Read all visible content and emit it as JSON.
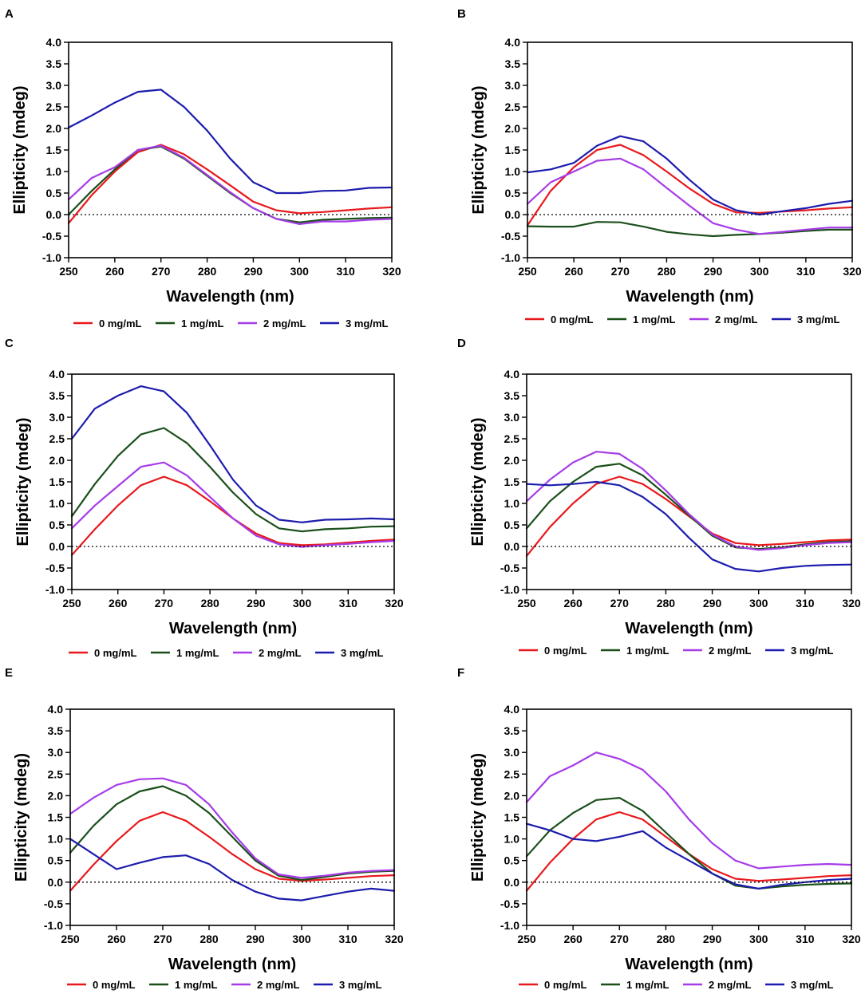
{
  "figure": {
    "series_names": [
      "0 mg/mL",
      "1 mg/mL",
      "2 mg/mL",
      "3 mg/mL"
    ],
    "series_colors": [
      "#e8191c",
      "#1a4f1a",
      "#a63ce8",
      "#1c1cae"
    ],
    "zero_line_color": "#000000"
  },
  "chart_data": [
    {
      "panel": "A",
      "type": "line",
      "xlabel": "Wavelength (nm)",
      "ylabel": "Ellipticity (mdeg)",
      "xlim": [
        250,
        320
      ],
      "ylim": [
        -1.0,
        4.0
      ],
      "xticks": [
        250,
        260,
        270,
        280,
        290,
        300,
        310,
        320
      ],
      "yticks": [
        -1.0,
        -0.5,
        0.0,
        0.5,
        1.0,
        1.5,
        2.0,
        2.5,
        3.0,
        3.5,
        4.0
      ],
      "legend_position": "bottom",
      "x": [
        250,
        255,
        260,
        265,
        270,
        275,
        280,
        285,
        290,
        295,
        300,
        305,
        310,
        315,
        320
      ],
      "series": [
        {
          "name": "0 mg/mL",
          "values": [
            -0.2,
            0.45,
            1.0,
            1.45,
            1.62,
            1.4,
            1.05,
            0.68,
            0.3,
            0.1,
            0.03,
            0.06,
            0.1,
            0.14,
            0.17
          ]
        },
        {
          "name": "1 mg/mL",
          "values": [
            0.0,
            0.55,
            1.05,
            1.5,
            1.58,
            1.3,
            0.9,
            0.5,
            0.15,
            -0.1,
            -0.18,
            -0.12,
            -0.1,
            -0.08,
            -0.07
          ]
        },
        {
          "name": "2 mg/mL",
          "values": [
            0.35,
            0.85,
            1.1,
            1.5,
            1.6,
            1.32,
            0.92,
            0.52,
            0.15,
            -0.1,
            -0.22,
            -0.16,
            -0.16,
            -0.12,
            -0.1
          ]
        },
        {
          "name": "3 mg/mL",
          "values": [
            2.02,
            2.3,
            2.6,
            2.85,
            2.9,
            2.5,
            1.95,
            1.3,
            0.75,
            0.5,
            0.5,
            0.55,
            0.56,
            0.62,
            0.63
          ]
        }
      ]
    },
    {
      "panel": "B",
      "type": "line",
      "xlabel": "Wavelength (nm)",
      "ylabel": "Ellipticity (mdeg)",
      "xlim": [
        250,
        320
      ],
      "ylim": [
        -1.0,
        4.0
      ],
      "xticks": [
        250,
        260,
        270,
        280,
        290,
        300,
        310,
        320
      ],
      "yticks": [
        -1.0,
        -0.5,
        0.0,
        0.5,
        1.0,
        1.5,
        2.0,
        2.5,
        3.0,
        3.5,
        4.0
      ],
      "legend_position": "bottom",
      "x": [
        250,
        255,
        260,
        265,
        270,
        275,
        280,
        285,
        290,
        295,
        300,
        305,
        310,
        315,
        320
      ],
      "series": [
        {
          "name": "0 mg/mL",
          "values": [
            -0.25,
            0.55,
            1.1,
            1.5,
            1.62,
            1.38,
            1.0,
            0.6,
            0.25,
            0.05,
            0.04,
            0.07,
            0.1,
            0.14,
            0.17
          ]
        },
        {
          "name": "1 mg/mL",
          "values": [
            -0.27,
            -0.28,
            -0.28,
            -0.17,
            -0.18,
            -0.28,
            -0.4,
            -0.46,
            -0.5,
            -0.47,
            -0.45,
            -0.42,
            -0.38,
            -0.35,
            -0.35
          ]
        },
        {
          "name": "2 mg/mL",
          "values": [
            0.25,
            0.75,
            1.0,
            1.25,
            1.3,
            1.05,
            0.62,
            0.2,
            -0.2,
            -0.35,
            -0.45,
            -0.4,
            -0.35,
            -0.3,
            -0.3
          ]
        },
        {
          "name": "3 mg/mL",
          "values": [
            0.98,
            1.05,
            1.2,
            1.6,
            1.82,
            1.7,
            1.3,
            0.8,
            0.35,
            0.1,
            0.0,
            0.08,
            0.15,
            0.25,
            0.32
          ]
        }
      ]
    },
    {
      "panel": "C",
      "type": "line",
      "xlabel": "Wavelength (nm)",
      "ylabel": "Ellipticity (mdeg)",
      "xlim": [
        250,
        320
      ],
      "ylim": [
        -1.0,
        4.0
      ],
      "xticks": [
        250,
        260,
        270,
        280,
        290,
        300,
        310,
        320
      ],
      "yticks": [
        -1.0,
        -0.5,
        0.0,
        0.5,
        1.0,
        1.5,
        2.0,
        2.5,
        3.0,
        3.5,
        4.0
      ],
      "legend_position": "bottom",
      "x": [
        250,
        255,
        260,
        265,
        270,
        275,
        280,
        285,
        290,
        295,
        300,
        305,
        310,
        315,
        320
      ],
      "series": [
        {
          "name": "0 mg/mL",
          "values": [
            -0.2,
            0.4,
            0.95,
            1.42,
            1.62,
            1.42,
            1.05,
            0.65,
            0.3,
            0.08,
            0.03,
            0.05,
            0.09,
            0.13,
            0.16
          ]
        },
        {
          "name": "1 mg/mL",
          "values": [
            0.7,
            1.45,
            2.1,
            2.6,
            2.75,
            2.4,
            1.85,
            1.25,
            0.75,
            0.42,
            0.35,
            0.4,
            0.42,
            0.46,
            0.47
          ]
        },
        {
          "name": "2 mg/mL",
          "values": [
            0.42,
            0.95,
            1.4,
            1.85,
            1.95,
            1.65,
            1.15,
            0.65,
            0.25,
            0.05,
            -0.01,
            0.03,
            0.06,
            0.1,
            0.13
          ]
        },
        {
          "name": "3 mg/mL",
          "values": [
            2.5,
            3.2,
            3.5,
            3.72,
            3.6,
            3.1,
            2.35,
            1.55,
            0.95,
            0.62,
            0.56,
            0.62,
            0.63,
            0.65,
            0.63
          ]
        }
      ]
    },
    {
      "panel": "D",
      "type": "line",
      "xlabel": "Wavelength (nm)",
      "ylabel": "Ellipticity (mdeg)",
      "xlim": [
        250,
        320
      ],
      "ylim": [
        -1.0,
        4.0
      ],
      "xticks": [
        250,
        260,
        270,
        280,
        290,
        300,
        310,
        320
      ],
      "yticks": [
        -1.0,
        -0.5,
        0.0,
        0.5,
        1.0,
        1.5,
        2.0,
        2.5,
        3.0,
        3.5,
        4.0
      ],
      "legend_position": "bottom",
      "x": [
        250,
        255,
        260,
        265,
        270,
        275,
        280,
        285,
        290,
        295,
        300,
        305,
        310,
        315,
        320
      ],
      "series": [
        {
          "name": "0 mg/mL",
          "values": [
            -0.22,
            0.45,
            1.0,
            1.45,
            1.62,
            1.45,
            1.1,
            0.7,
            0.3,
            0.08,
            0.03,
            0.06,
            0.1,
            0.14,
            0.16
          ]
        },
        {
          "name": "1 mg/mL",
          "values": [
            0.42,
            1.05,
            1.5,
            1.85,
            1.92,
            1.65,
            1.2,
            0.72,
            0.25,
            -0.02,
            -0.06,
            -0.02,
            0.05,
            0.1,
            0.12
          ]
        },
        {
          "name": "2 mg/mL",
          "values": [
            1.05,
            1.55,
            1.95,
            2.2,
            2.15,
            1.8,
            1.3,
            0.75,
            0.28,
            0.0,
            -0.08,
            -0.04,
            0.03,
            0.08,
            0.1
          ]
        },
        {
          "name": "3 mg/mL",
          "values": [
            1.45,
            1.42,
            1.45,
            1.5,
            1.42,
            1.15,
            0.75,
            0.2,
            -0.3,
            -0.52,
            -0.58,
            -0.5,
            -0.45,
            -0.43,
            -0.42
          ]
        }
      ]
    },
    {
      "panel": "E",
      "type": "line",
      "xlabel": "Wavelength (nm)",
      "ylabel": "Ellipticity (mdeg)",
      "xlim": [
        250,
        320
      ],
      "ylim": [
        -1.0,
        4.0
      ],
      "xticks": [
        250,
        260,
        270,
        280,
        290,
        300,
        310,
        320
      ],
      "yticks": [
        -1.0,
        -0.5,
        0.0,
        0.5,
        1.0,
        1.5,
        2.0,
        2.5,
        3.0,
        3.5,
        4.0
      ],
      "legend_position": "bottom",
      "x": [
        250,
        255,
        260,
        265,
        270,
        275,
        280,
        285,
        290,
        295,
        300,
        305,
        310,
        315,
        320
      ],
      "series": [
        {
          "name": "0 mg/mL",
          "values": [
            -0.2,
            0.4,
            0.95,
            1.42,
            1.62,
            1.42,
            1.05,
            0.65,
            0.3,
            0.08,
            0.03,
            0.06,
            0.1,
            0.14,
            0.16
          ]
        },
        {
          "name": "1 mg/mL",
          "values": [
            0.68,
            1.3,
            1.8,
            2.1,
            2.22,
            2.0,
            1.6,
            1.05,
            0.5,
            0.15,
            0.05,
            0.12,
            0.2,
            0.24,
            0.26
          ]
        },
        {
          "name": "2 mg/mL",
          "values": [
            1.58,
            1.95,
            2.25,
            2.38,
            2.4,
            2.25,
            1.8,
            1.15,
            0.55,
            0.18,
            0.1,
            0.15,
            0.22,
            0.26,
            0.28
          ]
        },
        {
          "name": "3 mg/mL",
          "values": [
            1.0,
            0.65,
            0.3,
            0.45,
            0.58,
            0.62,
            0.42,
            0.05,
            -0.22,
            -0.38,
            -0.42,
            -0.32,
            -0.22,
            -0.15,
            -0.2
          ]
        }
      ]
    },
    {
      "panel": "F",
      "type": "line",
      "xlabel": "Wavelength (nm)",
      "ylabel": "Ellipticity (mdeg)",
      "xlim": [
        250,
        320
      ],
      "ylim": [
        -1.0,
        4.0
      ],
      "xticks": [
        250,
        260,
        270,
        280,
        290,
        300,
        310,
        320
      ],
      "yticks": [
        -1.0,
        -0.5,
        0.0,
        0.5,
        1.0,
        1.5,
        2.0,
        2.5,
        3.0,
        3.5,
        4.0
      ],
      "legend_position": "bottom",
      "x": [
        250,
        255,
        260,
        265,
        270,
        275,
        280,
        285,
        290,
        295,
        300,
        305,
        310,
        315,
        320
      ],
      "series": [
        {
          "name": "0 mg/mL",
          "values": [
            -0.2,
            0.45,
            1.0,
            1.45,
            1.62,
            1.45,
            1.05,
            0.65,
            0.3,
            0.08,
            0.03,
            0.06,
            0.1,
            0.14,
            0.16
          ]
        },
        {
          "name": "1 mg/mL",
          "values": [
            0.6,
            1.2,
            1.6,
            1.9,
            1.95,
            1.65,
            1.15,
            0.65,
            0.2,
            -0.08,
            -0.15,
            -0.1,
            -0.06,
            -0.04,
            -0.03
          ]
        },
        {
          "name": "2 mg/mL",
          "values": [
            1.85,
            2.45,
            2.7,
            3.0,
            2.85,
            2.6,
            2.1,
            1.45,
            0.9,
            0.5,
            0.32,
            0.36,
            0.4,
            0.42,
            0.4
          ]
        },
        {
          "name": "3 mg/mL",
          "values": [
            1.35,
            1.2,
            1.0,
            0.95,
            1.05,
            1.18,
            0.8,
            0.5,
            0.2,
            -0.05,
            -0.15,
            -0.06,
            0.0,
            0.05,
            0.08
          ]
        }
      ]
    }
  ]
}
